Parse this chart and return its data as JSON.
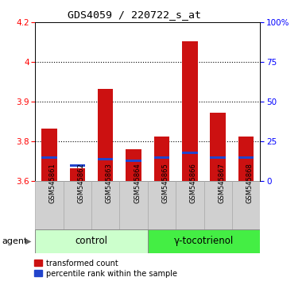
{
  "title": "GDS4059 / 220722_s_at",
  "samples": [
    "GSM545861",
    "GSM545862",
    "GSM545863",
    "GSM545864",
    "GSM545865",
    "GSM545866",
    "GSM545867",
    "GSM545868"
  ],
  "red_values": [
    3.8,
    3.65,
    3.95,
    3.72,
    3.77,
    4.13,
    3.86,
    3.77
  ],
  "blue_pct": [
    15,
    10,
    14,
    13,
    15,
    18,
    15,
    15
  ],
  "ymin": 3.6,
  "ymax": 4.2,
  "yticks": [
    3.6,
    3.75,
    3.9,
    4.05,
    4.2
  ],
  "right_yticks": [
    0,
    25,
    50,
    75,
    100
  ],
  "right_yticklabels": [
    "0",
    "25",
    "50",
    "75",
    "100%"
  ],
  "bar_color": "#cc1111",
  "blue_color": "#2244cc",
  "bar_width": 0.55,
  "control_bg": "#ccffcc",
  "tocotrienol_bg": "#44ee44",
  "agent_label": "agent",
  "legend_items": [
    "transformed count",
    "percentile rank within the sample"
  ]
}
